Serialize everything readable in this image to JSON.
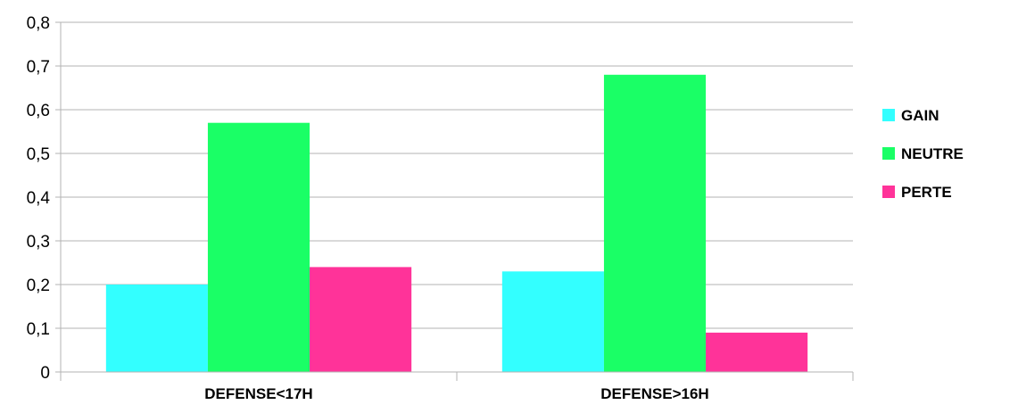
{
  "chart_data": {
    "type": "bar",
    "categories": [
      "DEFENSE<17H",
      "DEFENSE>16H"
    ],
    "series": [
      {
        "name": "GAIN",
        "values": [
          0.2,
          0.23
        ],
        "color": "#33ffff"
      },
      {
        "name": "NEUTRE",
        "values": [
          0.57,
          0.68
        ],
        "color": "#1aff66"
      },
      {
        "name": "PERTE",
        "values": [
          0.24,
          0.09
        ],
        "color": "#ff3399"
      }
    ],
    "yticks": [
      "0",
      "0,1",
      "0,2",
      "0,3",
      "0,4",
      "0,5",
      "0,6",
      "0,7",
      "0,8"
    ],
    "ylim": [
      0,
      0.8
    ],
    "grid": true,
    "legend": "right",
    "title": "",
    "xlabel": "",
    "ylabel": ""
  }
}
